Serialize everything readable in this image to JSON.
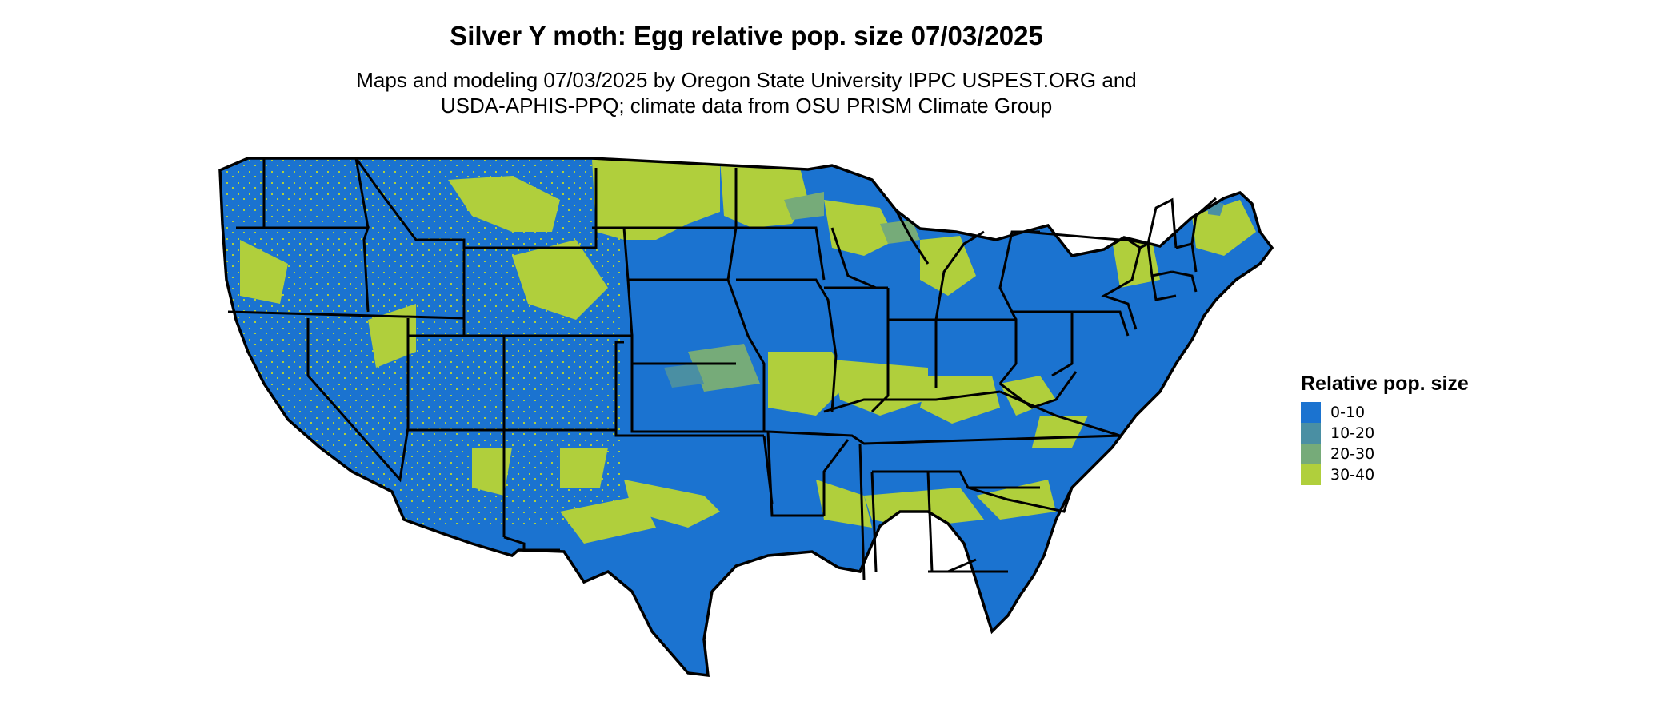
{
  "title": "Silver Y moth: Egg relative pop. size 07/03/2025",
  "subtitle_lines": [
    "Maps and modeling 07/03/2025 by Oregon State University IPPC USPEST.ORG and",
    "USDA-APHIS-PPQ; climate data from OSU PRISM Climate Group"
  ],
  "map": {
    "region": "conterminous United States",
    "boundaries": "state outlines",
    "dominant_class": "0-10"
  },
  "legend": {
    "title": "Relative pop. size",
    "items": [
      {
        "label": "0-10",
        "color": "#1b73d0"
      },
      {
        "label": "10-20",
        "color": "#4a8fa3"
      },
      {
        "label": "20-30",
        "color": "#76ab79"
      },
      {
        "label": "30-40",
        "color": "#b0cf3c"
      }
    ]
  }
}
